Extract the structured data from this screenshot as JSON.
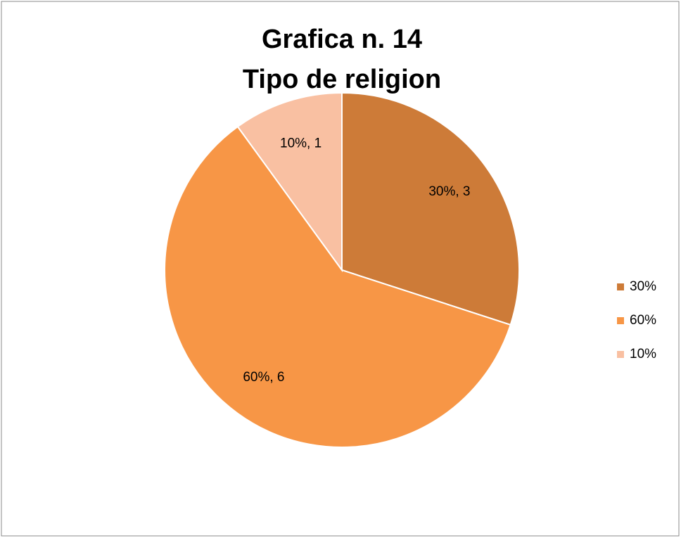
{
  "chart_data": {
    "type": "pie",
    "title": "Grafica n. 14",
    "subtitle": "Tipo de religion",
    "categories": [
      "30%",
      "60%",
      "10%"
    ],
    "values": [
      3,
      6,
      1
    ],
    "value_labels": [
      "30%, 3",
      "60%, 6",
      "10%, 1"
    ],
    "colors": [
      "#cd7b38",
      "#f79646",
      "#f9c0a2"
    ],
    "legend": "right"
  }
}
